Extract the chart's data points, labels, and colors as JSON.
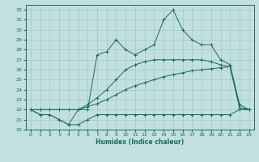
{
  "xlabel": "Humidex (Indice chaleur)",
  "bg_color": "#c2e0e0",
  "grid_color": "#9fc8c8",
  "line_color": "#1a6b5a",
  "xlim": [
    -0.5,
    23.5
  ],
  "ylim": [
    20,
    32.5
  ],
  "yticks": [
    20,
    21,
    22,
    23,
    24,
    25,
    26,
    27,
    28,
    29,
    30,
    31,
    32
  ],
  "xticks": [
    0,
    1,
    2,
    3,
    4,
    5,
    6,
    7,
    8,
    9,
    10,
    11,
    12,
    13,
    14,
    15,
    16,
    17,
    18,
    19,
    20,
    21,
    22,
    23
  ],
  "series": [
    {
      "x": [
        0,
        1,
        2,
        3,
        4,
        5,
        6,
        7,
        8,
        9,
        10,
        11,
        12,
        13,
        14,
        15,
        16,
        17,
        18,
        19,
        20,
        21,
        22,
        23
      ],
      "y": [
        22,
        21.5,
        21.5,
        21.0,
        20.5,
        20.5,
        21.0,
        21.5,
        21.5,
        21.5,
        21.5,
        21.5,
        21.5,
        21.5,
        21.5,
        21.5,
        21.5,
        21.5,
        21.5,
        21.5,
        21.5,
        21.5,
        22.0,
        22.0
      ]
    },
    {
      "x": [
        0,
        1,
        2,
        3,
        4,
        5,
        6,
        7,
        8,
        9,
        10,
        11,
        12,
        13,
        14,
        15,
        16,
        17,
        18,
        19,
        20,
        21,
        22,
        23
      ],
      "y": [
        22,
        22,
        22,
        22,
        22,
        22,
        22.3,
        22.6,
        23.0,
        23.5,
        24.0,
        24.4,
        24.7,
        25.0,
        25.3,
        25.5,
        25.7,
        25.9,
        26.0,
        26.1,
        26.2,
        26.3,
        22.2,
        22.0
      ]
    },
    {
      "x": [
        0,
        1,
        2,
        3,
        4,
        5,
        6,
        7,
        8,
        9,
        10,
        11,
        12,
        13,
        14,
        15,
        16,
        17,
        18,
        19,
        20,
        21,
        22,
        23
      ],
      "y": [
        22,
        22,
        22,
        22,
        22,
        22,
        22.5,
        23.2,
        24.0,
        25.0,
        26.0,
        26.5,
        26.8,
        27.0,
        27.0,
        27.0,
        27.0,
        27.0,
        27.0,
        26.8,
        26.5,
        26.3,
        22.2,
        22.0
      ]
    },
    {
      "x": [
        0,
        1,
        2,
        3,
        4,
        5,
        6,
        7,
        8,
        9,
        10,
        11,
        12,
        13,
        14,
        15,
        16,
        17,
        18,
        19,
        20,
        21,
        22,
        23
      ],
      "y": [
        22,
        21.5,
        21.5,
        21.0,
        20.5,
        22,
        22,
        27.5,
        27.8,
        29.0,
        28.0,
        27.5,
        28.0,
        28.5,
        31.0,
        32.0,
        30.0,
        29.0,
        28.5,
        28.5,
        27.0,
        26.5,
        22.5,
        22.0
      ]
    }
  ]
}
